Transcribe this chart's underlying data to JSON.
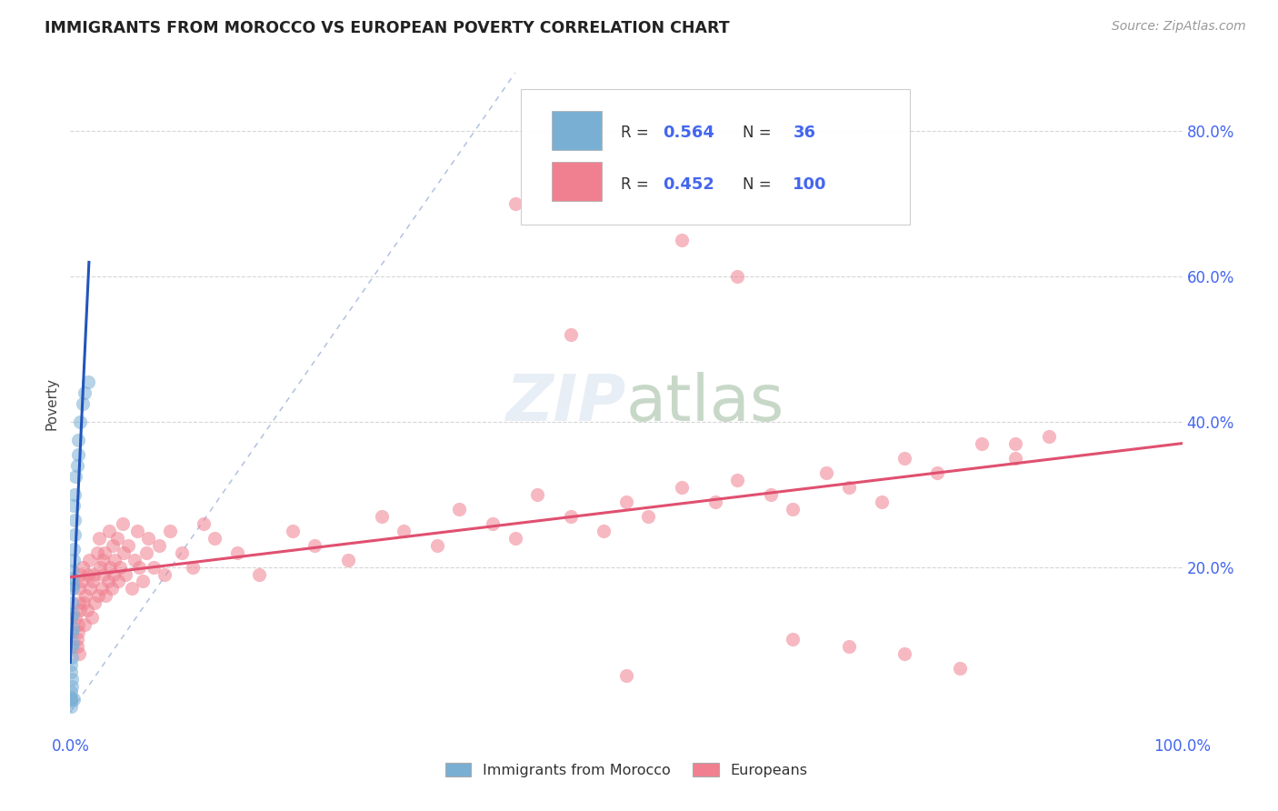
{
  "title": "IMMIGRANTS FROM MOROCCO VS EUROPEAN POVERTY CORRELATION CHART",
  "source": "Source: ZipAtlas.com",
  "ylabel": "Poverty",
  "color_morocco": "#7aafd4",
  "color_europe": "#f08090",
  "color_trend_morocco": "#2255bb",
  "color_trend_europe": "#e05070",
  "color_diag": "#aabbdd",
  "color_grid": "#cccccc",
  "color_tick": "#4466ee",
  "color_title": "#222222",
  "color_source": "#999999",
  "color_ylabel": "#444444",
  "watermark_color": "#e8eef5",
  "background_color": "#ffffff",
  "xlim": [
    0.0,
    1.0
  ],
  "ylim": [
    -0.03,
    0.88
  ],
  "yticks": [
    0.0,
    0.2,
    0.4,
    0.6,
    0.8
  ],
  "ytick_labels": [
    "",
    "20.0%",
    "40.0%",
    "60.0%",
    "80.0%"
  ],
  "xtick_labels": [
    "0.0%",
    "100.0%"
  ],
  "legend_r1": "0.564",
  "legend_n1": "36",
  "legend_r2": "0.452",
  "legend_n2": "100",
  "morocco_x": [
    0.0008,
    0.0012,
    0.0006,
    0.0015,
    0.001,
    0.0008,
    0.0012,
    0.002,
    0.0025,
    0.003,
    0.0028,
    0.004,
    0.0035,
    0.003,
    0.004,
    0.005,
    0.006,
    0.007,
    0.007,
    0.009,
    0.011,
    0.013,
    0.016,
    0.0009,
    0.0015,
    0.002,
    0.0007,
    0.0013,
    0.0025,
    0.0018,
    0.0007,
    0.0022,
    0.0017,
    0.0006,
    0.0006,
    0.003
  ],
  "morocco_y": [
    0.02,
    0.045,
    0.065,
    0.09,
    0.11,
    0.13,
    0.15,
    0.17,
    0.185,
    0.21,
    0.225,
    0.245,
    0.265,
    0.285,
    0.3,
    0.325,
    0.34,
    0.355,
    0.375,
    0.4,
    0.425,
    0.44,
    0.455,
    0.055,
    0.075,
    0.095,
    0.015,
    0.035,
    0.115,
    0.135,
    0.018,
    0.175,
    0.195,
    0.008,
    0.028,
    0.018
  ],
  "europe_x": [
    0.005,
    0.008,
    0.007,
    0.009,
    0.006,
    0.008,
    0.007,
    0.006,
    0.009,
    0.008,
    0.01,
    0.012,
    0.013,
    0.011,
    0.014,
    0.015,
    0.016,
    0.018,
    0.019,
    0.017,
    0.02,
    0.022,
    0.024,
    0.021,
    0.025,
    0.027,
    0.026,
    0.028,
    0.029,
    0.03,
    0.032,
    0.031,
    0.034,
    0.035,
    0.036,
    0.038,
    0.037,
    0.04,
    0.039,
    0.042,
    0.045,
    0.043,
    0.048,
    0.047,
    0.05,
    0.052,
    0.055,
    0.058,
    0.06,
    0.062,
    0.065,
    0.068,
    0.07,
    0.075,
    0.08,
    0.085,
    0.09,
    0.1,
    0.11,
    0.12,
    0.13,
    0.15,
    0.17,
    0.2,
    0.22,
    0.25,
    0.28,
    0.3,
    0.33,
    0.35,
    0.38,
    0.4,
    0.42,
    0.45,
    0.48,
    0.5,
    0.52,
    0.55,
    0.58,
    0.6,
    0.63,
    0.65,
    0.68,
    0.7,
    0.73,
    0.75,
    0.78,
    0.82,
    0.85,
    0.88,
    0.4,
    0.45,
    0.5,
    0.55,
    0.6,
    0.65,
    0.7,
    0.75,
    0.8,
    0.85
  ],
  "europe_y": [
    0.13,
    0.17,
    0.11,
    0.19,
    0.09,
    0.15,
    0.12,
    0.1,
    0.14,
    0.08,
    0.18,
    0.15,
    0.12,
    0.2,
    0.16,
    0.14,
    0.19,
    0.17,
    0.13,
    0.21,
    0.18,
    0.15,
    0.22,
    0.19,
    0.16,
    0.2,
    0.24,
    0.17,
    0.21,
    0.19,
    0.16,
    0.22,
    0.18,
    0.25,
    0.2,
    0.23,
    0.17,
    0.21,
    0.19,
    0.24,
    0.2,
    0.18,
    0.22,
    0.26,
    0.19,
    0.23,
    0.17,
    0.21,
    0.25,
    0.2,
    0.18,
    0.22,
    0.24,
    0.2,
    0.23,
    0.19,
    0.25,
    0.22,
    0.2,
    0.26,
    0.24,
    0.22,
    0.19,
    0.25,
    0.23,
    0.21,
    0.27,
    0.25,
    0.23,
    0.28,
    0.26,
    0.24,
    0.3,
    0.27,
    0.25,
    0.29,
    0.27,
    0.31,
    0.29,
    0.32,
    0.3,
    0.28,
    0.33,
    0.31,
    0.29,
    0.35,
    0.33,
    0.37,
    0.35,
    0.38,
    0.7,
    0.52,
    0.05,
    0.65,
    0.6,
    0.1,
    0.09,
    0.08,
    0.06,
    0.37
  ]
}
